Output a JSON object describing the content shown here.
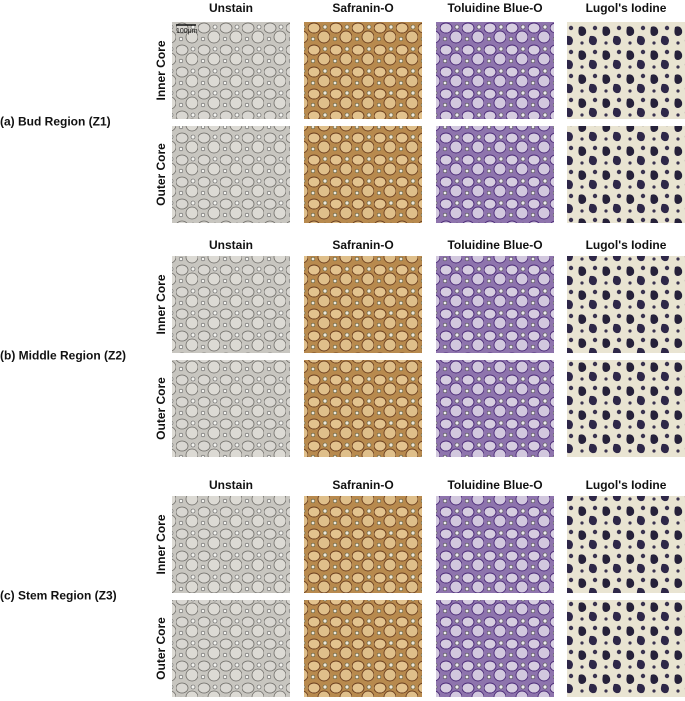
{
  "scale_bar": "100μm",
  "regions": [
    {
      "label": "(a) Bud Region (Z1)",
      "columns": [
        "Unstain",
        "Safranin-O",
        "Toluidine Blue-O",
        "Lugol's Iodine"
      ],
      "rows": [
        "Inner Core",
        "Outer Core"
      ]
    },
    {
      "label": "(b) Middle Region (Z2)",
      "columns": [
        "Unstain",
        "Safranin-O",
        "Toluidine Blue-O",
        "Lugol's Iodine"
      ],
      "rows": [
        "Inner Core",
        "Outer Core"
      ]
    },
    {
      "label": "(c) Stem Region (Z3)",
      "columns": [
        "Unstain",
        "Safranin-O",
        "Toluidine Blue-O",
        "Lugol's Iodine"
      ],
      "rows": [
        "Inner Core",
        "Outer Core"
      ]
    }
  ]
}
